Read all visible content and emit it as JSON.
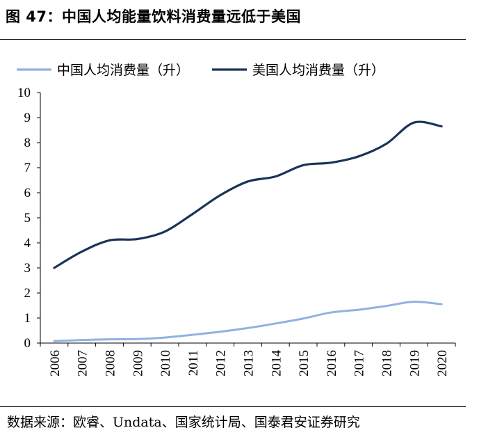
{
  "title": "图 47：中国人均能量饮料消费量远低于美国",
  "source": "数据来源：欧睿、Undata、国家统计局、国泰君安证券研究",
  "colors": {
    "china": "#8fb2e0",
    "usa": "#1b3358",
    "axis": "#000000"
  },
  "chart_data": {
    "type": "line",
    "categories": [
      "2006",
      "2007",
      "2008",
      "2009",
      "2010",
      "2011",
      "2012",
      "2013",
      "2014",
      "2015",
      "2016",
      "2017",
      "2018",
      "2019",
      "2020"
    ],
    "ylim": [
      0,
      10
    ],
    "yticks": [
      "0",
      "1",
      "2",
      "3",
      "4",
      "5",
      "6",
      "7",
      "8",
      "9",
      "10"
    ],
    "grid": false,
    "legend": "top",
    "series": [
      {
        "name": "中国人均消费量（升）",
        "color": "#8fb2e0",
        "values": [
          0.08,
          0.12,
          0.15,
          0.16,
          0.22,
          0.33,
          0.45,
          0.6,
          0.78,
          0.98,
          1.22,
          1.33,
          1.48,
          1.65,
          1.55
        ]
      },
      {
        "name": "美国人均消费量（升）",
        "color": "#1b3358",
        "values": [
          3.0,
          3.65,
          4.1,
          4.15,
          4.45,
          5.15,
          5.9,
          6.45,
          6.65,
          7.1,
          7.2,
          7.45,
          7.95,
          8.8,
          8.65
        ]
      }
    ]
  }
}
